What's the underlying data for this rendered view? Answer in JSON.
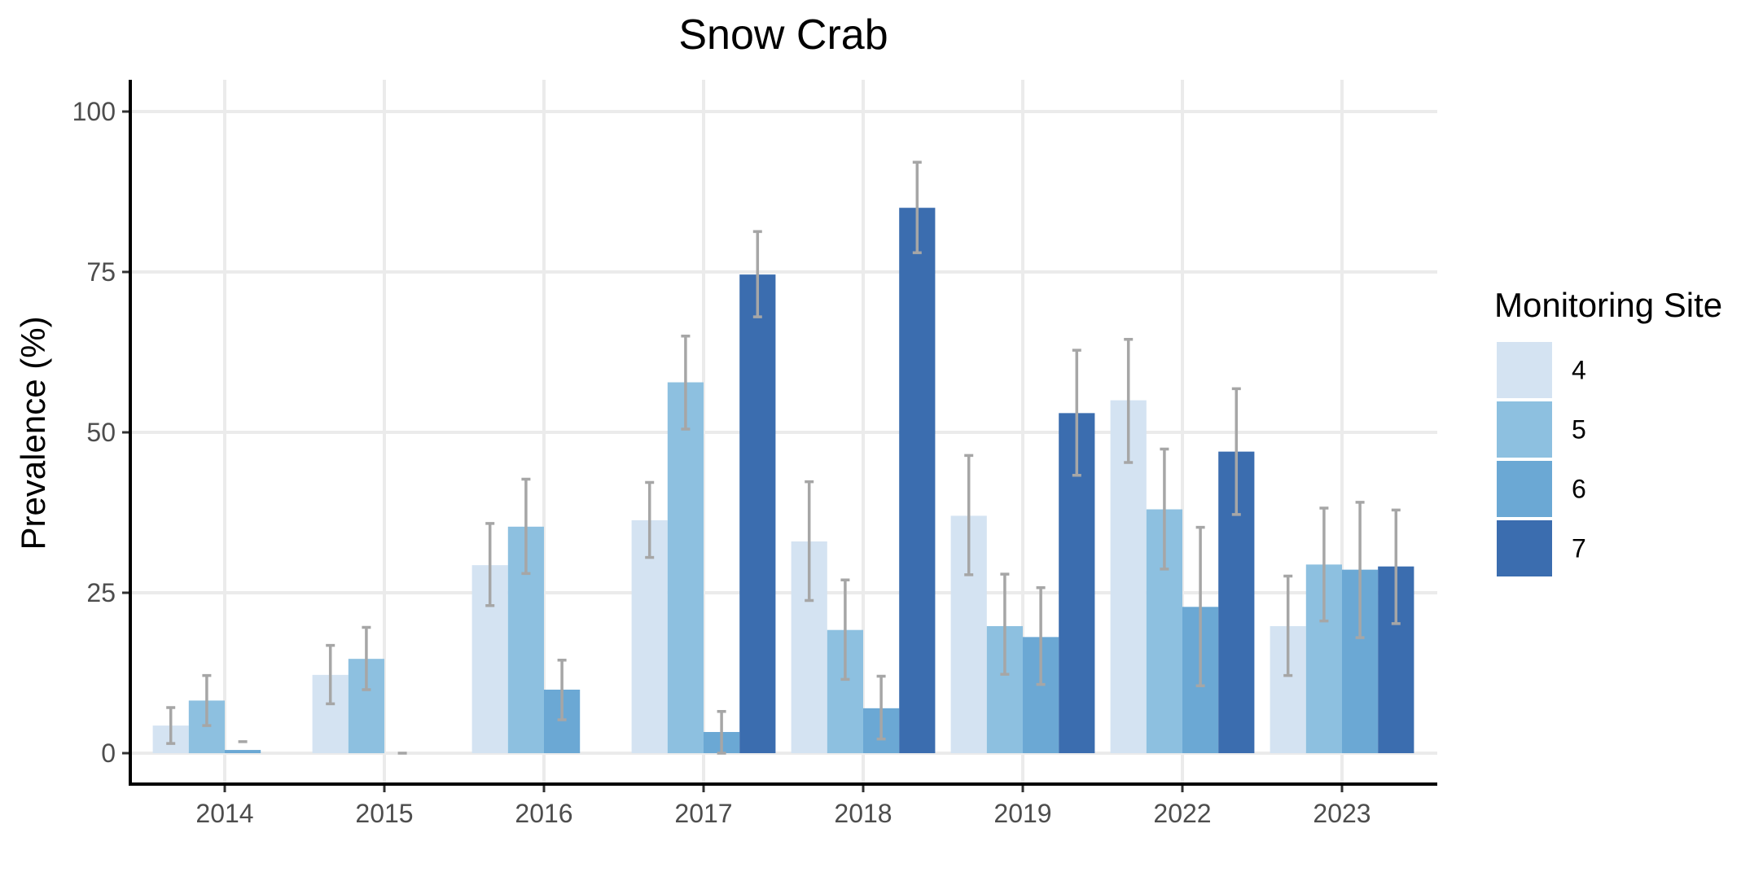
{
  "chart_data": {
    "type": "bar",
    "title": "Snow Crab",
    "xlabel": "",
    "ylabel": "Prevalence (%)",
    "ylim": [
      0,
      100
    ],
    "yticks": [
      0,
      25,
      50,
      75,
      100
    ],
    "categories": [
      "2014",
      "2015",
      "2016",
      "2017",
      "2018",
      "2019",
      "2022",
      "2023"
    ],
    "grid": true,
    "legend": {
      "title": "Monitoring Site",
      "position": "right"
    },
    "series": [
      {
        "name": "4",
        "color": "#d4e3f2",
        "values": [
          4.3,
          12.2,
          29.3,
          36.3,
          33.0,
          37.0,
          55.0,
          19.8
        ],
        "error_low": [
          1.5,
          7.7,
          23.0,
          30.5,
          23.8,
          27.8,
          45.3,
          12.1
        ],
        "error_high": [
          7.1,
          16.8,
          35.8,
          42.2,
          42.3,
          46.4,
          64.5,
          27.6
        ]
      },
      {
        "name": "5",
        "color": "#8dc0e0",
        "values": [
          8.2,
          14.7,
          35.3,
          57.8,
          19.2,
          19.8,
          38.0,
          29.4
        ],
        "error_low": [
          4.3,
          9.9,
          28.0,
          50.5,
          11.5,
          12.3,
          28.7,
          20.6
        ],
        "error_high": [
          12.1,
          19.6,
          42.7,
          65.0,
          27.0,
          27.9,
          47.4,
          38.2
        ]
      },
      {
        "name": "6",
        "color": "#6ba8d4",
        "values": [
          0.5,
          0.0,
          9.9,
          3.3,
          7.0,
          18.1,
          22.8,
          28.6
        ],
        "error_low": [
          1.8,
          0.0,
          5.2,
          0.0,
          2.2,
          10.7,
          10.5,
          18.0
        ],
        "error_high": [
          1.8,
          0.0,
          14.5,
          6.5,
          12.0,
          25.8,
          35.2,
          39.1
        ]
      },
      {
        "name": "7",
        "color": "#3b6daf",
        "values": [
          null,
          null,
          null,
          74.6,
          85.0,
          53.0,
          47.0,
          29.1
        ],
        "error_low": [
          null,
          null,
          null,
          68.0,
          78.0,
          43.3,
          37.2,
          20.2
        ],
        "error_high": [
          null,
          null,
          null,
          81.3,
          92.1,
          62.8,
          56.8,
          37.9
        ]
      }
    ]
  }
}
